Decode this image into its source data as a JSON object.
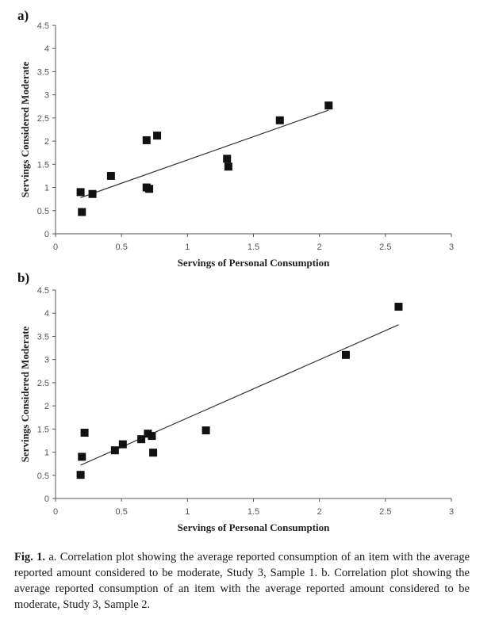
{
  "chart_data": [
    {
      "type": "scatter",
      "panel_label": "a)",
      "xlabel": "Servings of Personal Consumption",
      "ylabel": "Servings Considered Moderate",
      "xlim": [
        0,
        3
      ],
      "ylim": [
        0,
        4.5
      ],
      "xticks": [
        "0",
        "0.5",
        "1",
        "1.5",
        "2",
        "2.5",
        "3"
      ],
      "yticks": [
        "0",
        "0.5",
        "1",
        "1.5",
        "2",
        "2.5",
        "3",
        "3.5",
        "4",
        "4.5"
      ],
      "grid": false,
      "points": [
        {
          "x": 0.19,
          "y": 0.9
        },
        {
          "x": 0.2,
          "y": 0.47
        },
        {
          "x": 0.28,
          "y": 0.86
        },
        {
          "x": 0.42,
          "y": 1.25
        },
        {
          "x": 0.69,
          "y": 1.0
        },
        {
          "x": 0.71,
          "y": 0.97
        },
        {
          "x": 0.69,
          "y": 2.02
        },
        {
          "x": 0.77,
          "y": 2.12
        },
        {
          "x": 1.3,
          "y": 1.62
        },
        {
          "x": 1.31,
          "y": 1.45
        },
        {
          "x": 1.7,
          "y": 2.45
        },
        {
          "x": 2.07,
          "y": 2.77
        }
      ],
      "trendline": [
        [
          0.19,
          0.78
        ],
        [
          2.07,
          2.67
        ]
      ]
    },
    {
      "type": "scatter",
      "panel_label": "b)",
      "xlabel": "Servings of Personal Consumption",
      "ylabel": "Servings Considered Moderate",
      "xlim": [
        0,
        3
      ],
      "ylim": [
        0,
        4.5
      ],
      "xticks": [
        "0",
        "0.5",
        "1",
        "1.5",
        "2",
        "2.5",
        "3"
      ],
      "yticks": [
        "0",
        "0.5",
        "1",
        "1.5",
        "2",
        "2.5",
        "3",
        "3.5",
        "4",
        "4.5"
      ],
      "grid": false,
      "points": [
        {
          "x": 0.19,
          "y": 0.51
        },
        {
          "x": 0.2,
          "y": 0.9
        },
        {
          "x": 0.22,
          "y": 1.42
        },
        {
          "x": 0.45,
          "y": 1.04
        },
        {
          "x": 0.51,
          "y": 1.17
        },
        {
          "x": 0.65,
          "y": 1.28
        },
        {
          "x": 0.7,
          "y": 1.4
        },
        {
          "x": 0.73,
          "y": 1.35
        },
        {
          "x": 0.74,
          "y": 0.99
        },
        {
          "x": 1.14,
          "y": 1.47
        },
        {
          "x": 2.2,
          "y": 3.1
        },
        {
          "x": 2.6,
          "y": 4.14
        }
      ],
      "trendline": [
        [
          0.19,
          0.72
        ],
        [
          2.6,
          3.75
        ]
      ]
    }
  ],
  "caption": {
    "label": "Fig. 1.",
    "text": "a. Correlation plot showing the average reported consumption of an item with the average reported amount considered to be moderate, Study 3, Sample 1. b. Correlation plot showing the average reported consumption of an item with the average reported amount considered to be moderate, Study 3, Sample 2."
  }
}
